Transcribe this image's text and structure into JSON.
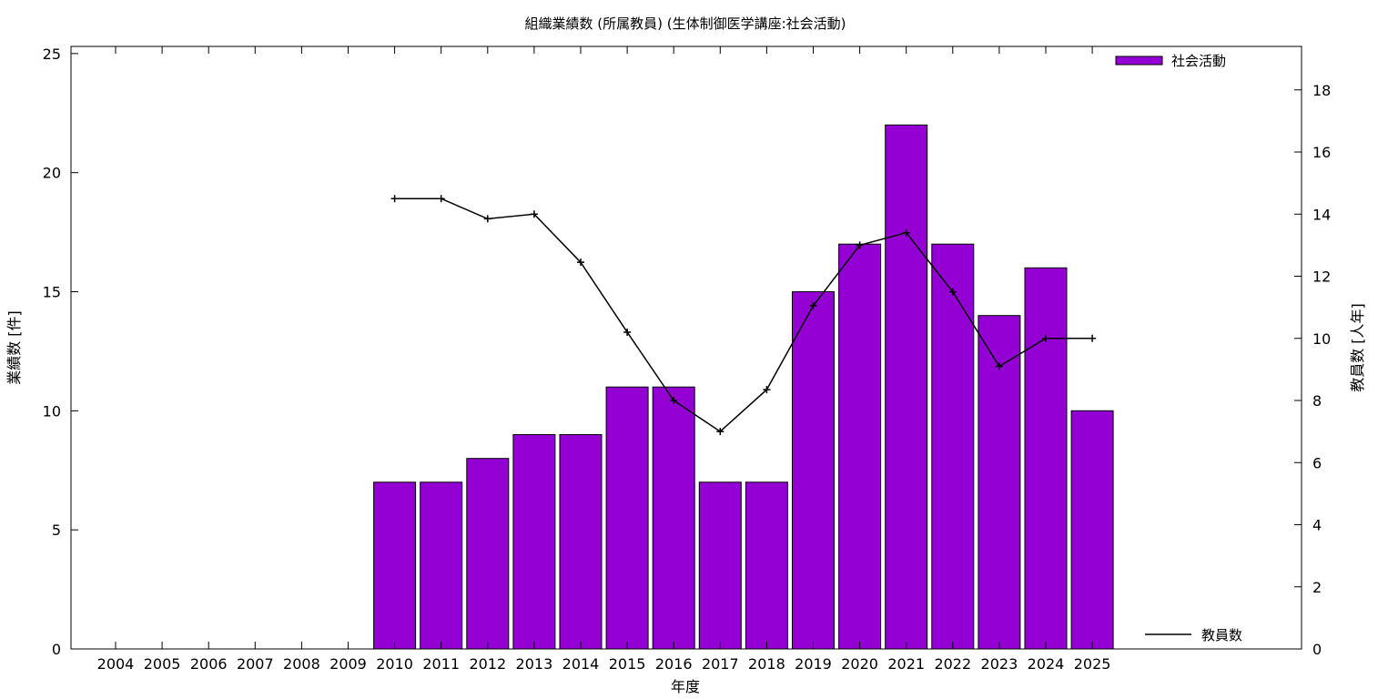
{
  "chart_data": {
    "type": "bar",
    "title": "組織業績数 (所属教員) (生体制御医学講座:社会活動)",
    "xlabel": "年度",
    "ylabel": "業績数 [件]",
    "y2label": "教員数 [人年]",
    "categories": [
      "2004",
      "2005",
      "2006",
      "2007",
      "2008",
      "2009",
      "2010",
      "2011",
      "2012",
      "2013",
      "2014",
      "2015",
      "2016",
      "2017",
      "2018",
      "2019",
      "2020",
      "2021",
      "2022",
      "2023",
      "2024",
      "2025"
    ],
    "ylim": [
      0,
      25.3
    ],
    "yticks": [
      0,
      5,
      10,
      15,
      20,
      25
    ],
    "y2lim": [
      0,
      19.4
    ],
    "y2ticks": [
      0,
      2,
      4,
      6,
      8,
      10,
      12,
      14,
      16,
      18
    ],
    "series": [
      {
        "name": "社会活動",
        "kind": "bar",
        "axis": "left",
        "color": "#9400d3",
        "values": [
          null,
          null,
          null,
          null,
          null,
          null,
          7,
          7,
          8,
          9,
          9,
          11,
          11,
          7,
          7,
          15,
          17,
          22,
          17,
          14,
          16,
          10
        ]
      },
      {
        "name": "教員数",
        "kind": "line",
        "axis": "right",
        "color": "#000000",
        "values": [
          null,
          null,
          null,
          null,
          null,
          null,
          14.5,
          14.5,
          13.85,
          14.0,
          12.45,
          10.2,
          8.0,
          7.0,
          8.35,
          11.05,
          13.0,
          13.4,
          11.5,
          9.1,
          10.0,
          10.0
        ]
      }
    ],
    "legend": {
      "bar_position": "top-right",
      "line_position": "bottom-right"
    },
    "grid": false
  }
}
